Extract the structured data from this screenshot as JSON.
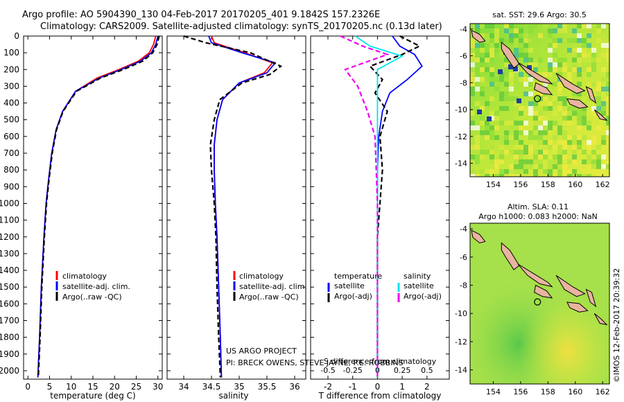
{
  "header": {
    "title_line1": "Argo profile: AO 5904390_130 04-Feb-2017 20170205_401 9.1842S 157.2326E",
    "title_line2": "Climatology: CARS2009. Satellite-adjusted climatology: synTS_20170205.nc (0.13d later)"
  },
  "credits": {
    "project": "US ARGO PROJECT",
    "pi": "PI: BRECK OWENS, STEVE JAYNE, P.E. ROBBINS",
    "imos": "©IMOS 12-Feb-2017 20:39:32"
  },
  "colors": {
    "climatology": "#ff0000",
    "satellite": "#0000ff",
    "argo": "#000000",
    "salinity_satellite": "#00e5ee",
    "salinity_argo": "#ee00ee",
    "land": "#e8b4a0"
  },
  "chart_data": [
    {
      "type": "line",
      "name": "temperature-profile",
      "xlabel": "temperature (deg C)",
      "ylabel": "",
      "xlim": [
        -1,
        31
      ],
      "ylim": [
        2050,
        0
      ],
      "xticks": [
        0,
        5,
        10,
        15,
        20,
        25,
        30
      ],
      "yticks": [
        0,
        100,
        200,
        300,
        400,
        500,
        600,
        700,
        800,
        900,
        1000,
        1100,
        1200,
        1300,
        1400,
        1500,
        1600,
        1700,
        1800,
        1900,
        2000
      ],
      "legend": [
        "climatology",
        "satellite-adj. clim.",
        "Argo(..raw -QC)"
      ],
      "legend_position": "lower-left",
      "series": [
        {
          "name": "climatology",
          "style": "solid",
          "x": [
            29.5,
            29,
            28,
            25.5,
            21,
            16,
            11,
            8,
            6.5,
            5.5,
            4.8,
            4.2,
            3.7,
            3.1,
            2.7,
            2.3
          ],
          "y": [
            0,
            50,
            100,
            150,
            200,
            250,
            330,
            450,
            560,
            700,
            850,
            1000,
            1200,
            1500,
            1800,
            2040
          ]
        },
        {
          "name": "satellite-adj. clim.",
          "style": "solid",
          "x": [
            30,
            29.5,
            28.5,
            26,
            21.5,
            16.5,
            11,
            8,
            6.5,
            5.5,
            4.8,
            4.2,
            3.7,
            3.1,
            2.7,
            2.3
          ],
          "y": [
            0,
            50,
            100,
            150,
            200,
            250,
            330,
            450,
            560,
            700,
            850,
            1000,
            1200,
            1500,
            1800,
            2040
          ]
        },
        {
          "name": "Argo(..raw -QC)",
          "style": "dashed",
          "x": [
            30.3,
            29.8,
            28.8,
            26.5,
            22,
            16.8,
            11.2,
            8.1,
            6.6,
            5.6,
            4.9,
            4.3,
            3.8,
            3.2,
            2.8,
            2.4
          ],
          "y": [
            0,
            50,
            100,
            150,
            200,
            250,
            330,
            450,
            560,
            700,
            850,
            1000,
            1200,
            1500,
            1800,
            2040
          ]
        }
      ]
    },
    {
      "type": "line",
      "name": "salinity-profile",
      "xlabel": "salinity",
      "xlim": [
        33.7,
        36.2
      ],
      "ylim": [
        2050,
        0
      ],
      "xticks": [
        34,
        34.5,
        35,
        35.5,
        36
      ],
      "legend": [
        "climatology",
        "satellite-adj. clim.",
        "Argo(..raw -QC)"
      ],
      "legend_position": "lower-left",
      "series": [
        {
          "name": "climatology",
          "style": "solid",
          "x": [
            34.5,
            34.55,
            35.1,
            35.6,
            35.45,
            35.0,
            34.7,
            34.6,
            34.55,
            34.55,
            34.57,
            34.6,
            34.63,
            34.66,
            34.68
          ],
          "y": [
            0,
            40,
            100,
            160,
            220,
            280,
            380,
            500,
            650,
            800,
            1000,
            1200,
            1500,
            1800,
            2040
          ]
        },
        {
          "name": "satellite-adj. clim.",
          "style": "solid",
          "x": [
            34.45,
            34.5,
            35.05,
            35.65,
            35.5,
            35.0,
            34.7,
            34.6,
            34.55,
            34.55,
            34.57,
            34.6,
            34.63,
            34.66,
            34.68
          ],
          "y": [
            0,
            40,
            100,
            160,
            220,
            280,
            380,
            500,
            650,
            800,
            1000,
            1200,
            1500,
            1800,
            2040
          ]
        },
        {
          "name": "Argo(..raw -QC)",
          "style": "dashed",
          "x": [
            34.0,
            34.4,
            35.2,
            35.75,
            35.55,
            35.05,
            34.65,
            34.55,
            34.48,
            34.5,
            34.55,
            34.58,
            34.6,
            34.63,
            34.66
          ],
          "y": [
            0,
            40,
            100,
            180,
            230,
            280,
            380,
            500,
            650,
            800,
            1000,
            1200,
            1500,
            1800,
            2040
          ]
        }
      ]
    },
    {
      "type": "line",
      "name": "difference-profile",
      "xlabel": "T difference from climatology",
      "xlabel_top": "S difference from climatology",
      "xlim": [
        -2.7,
        2.9
      ],
      "ylim": [
        2050,
        0
      ],
      "xticks": [
        -2,
        -1,
        0,
        1,
        2
      ],
      "xticks_top": [
        -0.5,
        -0.25,
        0,
        0.25,
        0.5
      ],
      "legend_temperature_title": "temperature",
      "legend_salinity_title": "salinity",
      "legend": [
        "satellite",
        "Argo(-adj)",
        "satellite",
        "Argo(-adj)"
      ],
      "legend_position": "lower-center",
      "series": [
        {
          "name": "temperature satellite",
          "style": "solid",
          "x": [
            0.6,
            0.9,
            1.5,
            1.8,
            1.2,
            0.5,
            0.2,
            0.05,
            0,
            0,
            0,
            0
          ],
          "y": [
            0,
            60,
            110,
            180,
            260,
            340,
            450,
            600,
            800,
            1200,
            1600,
            2040
          ]
        },
        {
          "name": "temperature Argo(-adj)",
          "style": "dashed",
          "x": [
            0.9,
            1.7,
            1.0,
            -0.3,
            0.2,
            -0.1,
            0.4,
            0.1,
            0.2,
            0,
            0,
            0
          ],
          "y": [
            0,
            60,
            110,
            180,
            260,
            340,
            450,
            600,
            800,
            1200,
            1600,
            2040
          ]
        },
        {
          "name": "salinity satellite",
          "style": "solid",
          "x": [
            -0.9,
            -0.3,
            1.0,
            0,
            0,
            0,
            0,
            0,
            0
          ],
          "y": [
            0,
            60,
            120,
            200,
            300,
            600,
            1000,
            1500,
            2040
          ]
        },
        {
          "name": "salinity Argo(-adj)",
          "style": "dashed",
          "x": [
            -1.5,
            -0.6,
            0.4,
            -1.3,
            -0.8,
            -0.4,
            -0.1,
            0,
            0
          ],
          "y": [
            0,
            60,
            110,
            200,
            300,
            450,
            600,
            1000,
            2040
          ]
        }
      ]
    },
    {
      "type": "heatmap",
      "name": "sst-map",
      "title": "sat. SST: 29.6 Argo: 30.5",
      "xticks": [
        154,
        156,
        158,
        160,
        162
      ],
      "yticks": [
        -4,
        -6,
        -8,
        -10,
        -12,
        -14
      ],
      "xlim": [
        152.3,
        162.5
      ],
      "ylim": [
        -15,
        -3.6
      ],
      "argo_position": [
        157.2326,
        -9.1842
      ]
    },
    {
      "type": "heatmap",
      "name": "sla-map",
      "title": "Altim. SLA: 0.11",
      "subtitle": "Argo h1000: 0.083 h2000: NaN",
      "xticks": [
        154,
        156,
        158,
        160,
        162
      ],
      "yticks": [
        -4,
        -6,
        -8,
        -10,
        -12,
        -14
      ],
      "xlim": [
        152.3,
        162.5
      ],
      "ylim": [
        -15,
        -3.6
      ],
      "argo_position": [
        157.2326,
        -9.1842
      ]
    }
  ]
}
